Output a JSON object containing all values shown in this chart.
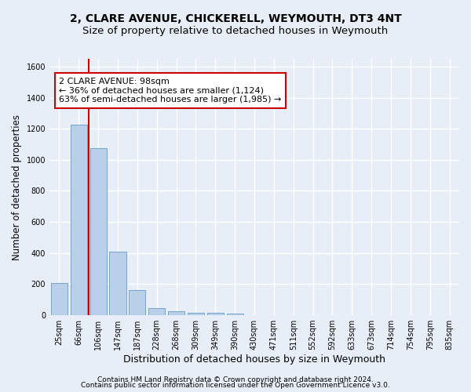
{
  "title_line1": "2, CLARE AVENUE, CHICKERELL, WEYMOUTH, DT3 4NT",
  "title_line2": "Size of property relative to detached houses in Weymouth",
  "xlabel": "Distribution of detached houses by size in Weymouth",
  "ylabel": "Number of detached properties",
  "categories": [
    "25sqm",
    "66sqm",
    "106sqm",
    "147sqm",
    "187sqm",
    "228sqm",
    "268sqm",
    "309sqm",
    "349sqm",
    "390sqm",
    "430sqm",
    "471sqm",
    "511sqm",
    "552sqm",
    "592sqm",
    "633sqm",
    "673sqm",
    "714sqm",
    "754sqm",
    "795sqm",
    "835sqm"
  ],
  "values": [
    205,
    1225,
    1075,
    410,
    160,
    45,
    27,
    17,
    15,
    10,
    0,
    0,
    0,
    0,
    0,
    0,
    0,
    0,
    0,
    0,
    0
  ],
  "bar_color": "#b8d0e8",
  "bar_edge_color": "#6699cc",
  "marker_label_line1": "2 CLARE AVENUE: 98sqm",
  "marker_label_line2": "← 36% of detached houses are smaller (1,124)",
  "marker_label_line3": "63% of semi-detached houses are larger (1,985) →",
  "marker_color": "#cc0000",
  "ylim": [
    0,
    1650
  ],
  "yticks": [
    0,
    200,
    400,
    600,
    800,
    1000,
    1200,
    1400,
    1600
  ],
  "footnote1": "Contains HM Land Registry data © Crown copyright and database right 2024.",
  "footnote2": "Contains public sector information licensed under the Open Government Licence v3.0.",
  "bg_color": "#e8eef8",
  "plot_bg_color": "#e8eef8",
  "grid_color": "#ffffff",
  "title_fontsize": 10,
  "subtitle_fontsize": 9.5,
  "ylabel_fontsize": 8.5,
  "xlabel_fontsize": 9,
  "tick_fontsize": 7,
  "footnote_fontsize": 6.5,
  "annot_fontsize": 8
}
